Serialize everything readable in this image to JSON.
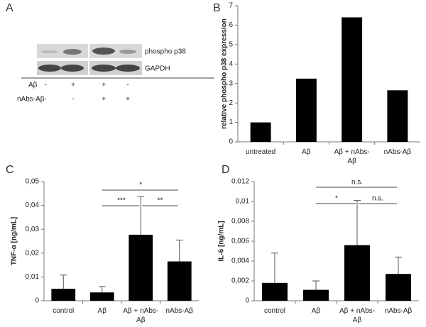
{
  "blot": {
    "panel": "A",
    "bands": [
      "phospho p38",
      "GAPDH"
    ],
    "rows": [
      {
        "label": "Aβ",
        "signs": [
          "-",
          "+",
          "+",
          "-"
        ]
      },
      {
        "label": "nAbs-Aβ",
        "signs": [
          "-",
          "-",
          "+",
          "+"
        ]
      }
    ]
  },
  "chart_data": [
    {
      "type": "bar",
      "panel": "B",
      "y_label": "relative phospho p38 expression",
      "categories": [
        "untreated",
        "Aβ",
        "Aβ + nAbs-Aβ",
        "nAbs-Aβ"
      ],
      "values": [
        1,
        3.25,
        6.4,
        2.65
      ],
      "color": "#000000",
      "ylim": [
        0,
        7
      ],
      "yticks": [
        0,
        1,
        2,
        3,
        4,
        5,
        6,
        7
      ]
    },
    {
      "type": "bar",
      "panel": "C",
      "y_label": "TNF-α [ng/mL]",
      "categories": [
        "control",
        "Aβ",
        "Aβ + nAbs-Aβ",
        "nAbs-Aβ"
      ],
      "values": [
        0.005,
        0.0035,
        0.0277,
        0.0165
      ],
      "errors": [
        0.0058,
        0.0025,
        0.016,
        0.009
      ],
      "color": "#000000",
      "ylim": [
        0,
        0.05
      ],
      "yticks": [
        0,
        {
          "value": 0.01,
          "label": "0,01"
        },
        {
          "value": 0.02,
          "label": "0,02"
        },
        {
          "value": 0.03,
          "label": "0,03"
        },
        {
          "value": 0.04,
          "label": "0,04"
        },
        {
          "value": 0.05,
          "label": "0,05"
        }
      ],
      "annotations": [
        {
          "text": "*",
          "between": [
            "Aβ",
            "nAbs-Aβ"
          ]
        },
        {
          "text": "***",
          "between": [
            "Aβ",
            "Aβ + nAbs-Aβ"
          ]
        },
        {
          "text": "**",
          "between": [
            "Aβ + nAbs-Aβ",
            "nAbs-Aβ"
          ]
        }
      ]
    },
    {
      "type": "bar",
      "panel": "D",
      "y_label": "IL-6 [ng/mL]",
      "categories": [
        "control",
        "Aβ",
        "Aβ + nAbs-Aβ",
        "nAbs-Aβ"
      ],
      "values": [
        0.0018,
        0.0011,
        0.0056,
        0.0027
      ],
      "errors": [
        0.003,
        0.0009,
        0.0045,
        0.0017
      ],
      "color": "#000000",
      "ylim": [
        0,
        0.012
      ],
      "yticks": [
        0,
        {
          "value": 0.002,
          "label": "0,002"
        },
        {
          "value": 0.004,
          "label": "0,004"
        },
        {
          "value": 0.006,
          "label": "0,006"
        },
        {
          "value": 0.008,
          "label": "0,008"
        },
        {
          "value": 0.01,
          "label": "0,01"
        },
        {
          "value": 0.012,
          "label": "0,012"
        }
      ],
      "annotations": [
        {
          "text": "n.s.",
          "between": [
            "Aβ",
            "nAbs-Aβ"
          ]
        },
        {
          "text": "*",
          "between": [
            "Aβ",
            "Aβ + nAbs-Aβ"
          ]
        },
        {
          "text": "n.s.",
          "between": [
            "Aβ + nAbs-Aβ",
            "nAbs-Aβ"
          ]
        }
      ]
    }
  ]
}
